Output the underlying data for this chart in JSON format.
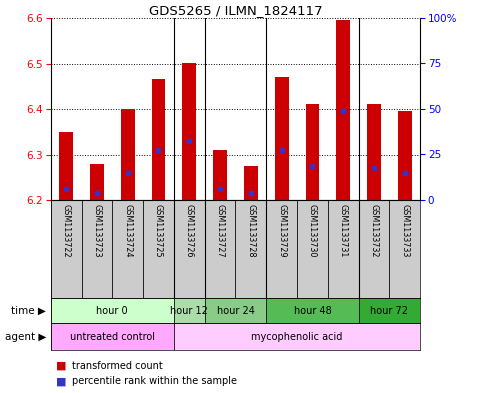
{
  "title": "GDS5265 / ILMN_1824117",
  "samples": [
    "GSM1133722",
    "GSM1133723",
    "GSM1133724",
    "GSM1133725",
    "GSM1133726",
    "GSM1133727",
    "GSM1133728",
    "GSM1133729",
    "GSM1133730",
    "GSM1133731",
    "GSM1133732",
    "GSM1133733"
  ],
  "bar_tops": [
    6.35,
    6.28,
    6.4,
    6.465,
    6.5,
    6.31,
    6.275,
    6.47,
    6.41,
    6.595,
    6.41,
    6.395
  ],
  "bar_bottom": 6.2,
  "blue_dot_y": [
    6.225,
    6.215,
    6.26,
    6.31,
    6.33,
    6.225,
    6.215,
    6.31,
    6.275,
    6.395,
    6.27,
    6.26
  ],
  "ylim": [
    6.2,
    6.6
  ],
  "yticks": [
    6.2,
    6.3,
    6.4,
    6.5,
    6.6
  ],
  "right_yticks": [
    0,
    25,
    50,
    75,
    100
  ],
  "right_ytick_labels": [
    "0",
    "25",
    "50",
    "75",
    "100%"
  ],
  "bar_color": "#cc0000",
  "blue_dot_color": "#3333cc",
  "separators": [
    3.5,
    4.5,
    6.5,
    9.5
  ],
  "time_groups": [
    {
      "label": "hour 0",
      "start": 0,
      "end": 4,
      "color": "#ccffcc"
    },
    {
      "label": "hour 12",
      "start": 4,
      "end": 5,
      "color": "#aaddaa"
    },
    {
      "label": "hour 24",
      "start": 5,
      "end": 7,
      "color": "#88cc88"
    },
    {
      "label": "hour 48",
      "start": 7,
      "end": 10,
      "color": "#55bb55"
    },
    {
      "label": "hour 72",
      "start": 10,
      "end": 12,
      "color": "#33aa33"
    }
  ],
  "agent_groups": [
    {
      "label": "untreated control",
      "start": 0,
      "end": 4,
      "color": "#ffaaff"
    },
    {
      "label": "mycophenolic acid",
      "start": 4,
      "end": 12,
      "color": "#ffccff"
    }
  ],
  "sample_bg": "#cccccc"
}
